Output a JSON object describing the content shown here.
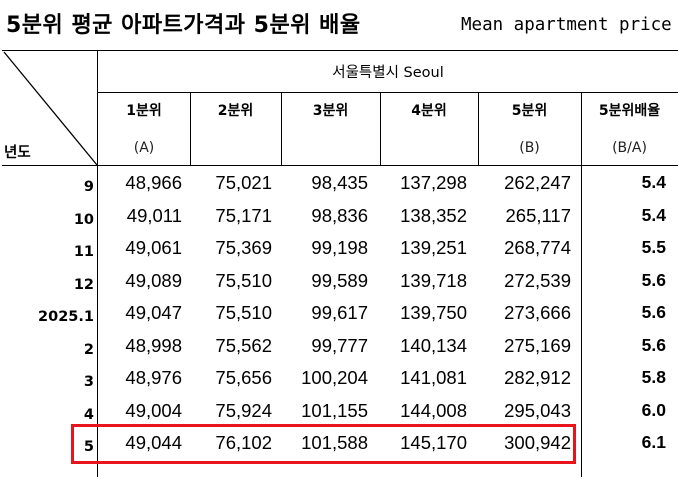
{
  "title": {
    "korean": "5분위 평균 아파트가격과 5분위 배율",
    "english": "Mean apartment price"
  },
  "header": {
    "region": "서울특별시 Seoul",
    "year_label": "년도",
    "columns": [
      {
        "label": "1분위",
        "sub": "(A)"
      },
      {
        "label": "2분위",
        "sub": ""
      },
      {
        "label": "3분위",
        "sub": ""
      },
      {
        "label": "4분위",
        "sub": ""
      },
      {
        "label": "5분위",
        "sub": "(B)"
      },
      {
        "label": "5분위배율",
        "sub": "(B/A)"
      }
    ]
  },
  "rows": [
    {
      "year": "9",
      "values": [
        "48,966",
        "75,021",
        "98,435",
        "137,298",
        "262,247"
      ],
      "ratio": "5.4"
    },
    {
      "year": "10",
      "values": [
        "49,011",
        "75,171",
        "98,836",
        "138,352",
        "265,117"
      ],
      "ratio": "5.4"
    },
    {
      "year": "11",
      "values": [
        "49,061",
        "75,369",
        "99,198",
        "139,251",
        "268,774"
      ],
      "ratio": "5.5"
    },
    {
      "year": "12",
      "values": [
        "49,089",
        "75,510",
        "99,589",
        "139,718",
        "272,539"
      ],
      "ratio": "5.6"
    },
    {
      "year": "2025.1",
      "values": [
        "49,047",
        "75,510",
        "99,617",
        "139,750",
        "273,666"
      ],
      "ratio": "5.6"
    },
    {
      "year": "2",
      "values": [
        "48,998",
        "75,562",
        "99,777",
        "140,134",
        "275,169"
      ],
      "ratio": "5.6"
    },
    {
      "year": "3",
      "values": [
        "48,976",
        "75,656",
        "100,204",
        "141,081",
        "282,912"
      ],
      "ratio": "5.8"
    },
    {
      "year": "4",
      "values": [
        "49,004",
        "75,924",
        "101,155",
        "144,008",
        "295,043"
      ],
      "ratio": "6.0"
    },
    {
      "year": "5",
      "values": [
        "49,044",
        "76,102",
        "101,588",
        "145,170",
        "300,942"
      ],
      "ratio": "6.1"
    }
  ],
  "highlight_color": "#e8141b"
}
